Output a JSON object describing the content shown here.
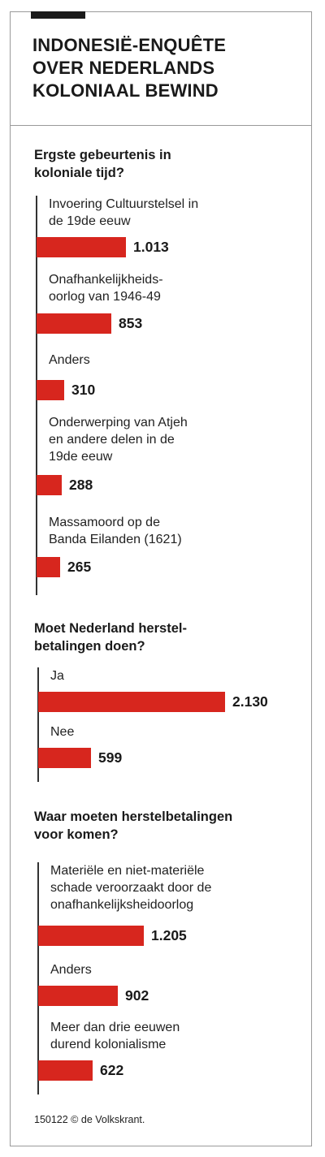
{
  "header": {
    "title_lines": [
      "INDONESIË-ENQUÊTE",
      "OVER NEDERLANDS",
      "KOLONIAAL BEWIND"
    ]
  },
  "colors": {
    "bar": "#d7261e",
    "text": "#1a1a1a",
    "frame": "#9a9a9a"
  },
  "chart_data": [
    {
      "type": "bar",
      "orientation": "horizontal",
      "title_lines": [
        "Ergste gebeurtenis in",
        "koloniale tijd?"
      ],
      "categories": [
        [
          "Invoering Cultuurstelsel in",
          "de 19de eeuw"
        ],
        [
          "Onafhankelijkheids-",
          "oorlog van 1946-49"
        ],
        [
          "Anders"
        ],
        [
          "Onderwerping van Atjeh",
          "en andere delen in de",
          "19de eeuw"
        ],
        [
          "Massamoord op de",
          "Banda Eilanden (1621)"
        ]
      ],
      "values": [
        1013,
        853,
        310,
        288,
        265
      ],
      "value_labels": [
        "1.013",
        "853",
        "310",
        "288",
        "265"
      ]
    },
    {
      "type": "bar",
      "orientation": "horizontal",
      "title_lines": [
        "Moet Nederland herstel-",
        "betalingen doen?"
      ],
      "categories": [
        [
          "Ja"
        ],
        [
          "Nee"
        ]
      ],
      "values": [
        2130,
        599
      ],
      "value_labels": [
        "2.130",
        "599"
      ]
    },
    {
      "type": "bar",
      "orientation": "horizontal",
      "title_lines": [
        "Waar moeten herstelbetalingen",
        "voor komen?"
      ],
      "categories": [
        [
          "Materiële en niet-materiële",
          "schade veroorzaakt door de",
          "onafhankelijksheidoorlog"
        ],
        [
          "Anders"
        ],
        [
          "Meer dan drie eeuwen",
          "durend kolonialisme"
        ]
      ],
      "values": [
        1205,
        902,
        622
      ],
      "value_labels": [
        "1.205",
        "902",
        "622"
      ]
    }
  ],
  "footer": {
    "source": "150122 © de Volkskrant."
  }
}
